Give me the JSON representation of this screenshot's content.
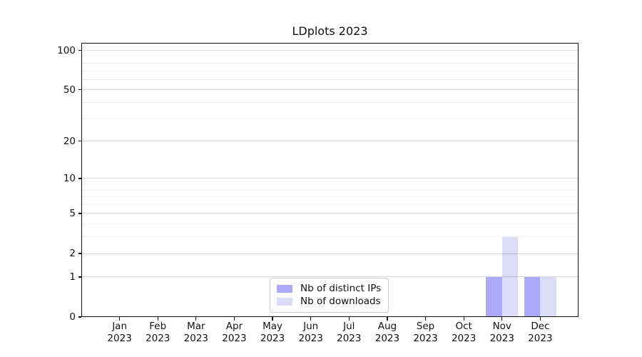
{
  "chart_data": {
    "type": "bar",
    "title": "LDplots 2023",
    "categories": [
      "Jan",
      "Feb",
      "Mar",
      "Apr",
      "May",
      "Jun",
      "Jul",
      "Aug",
      "Sep",
      "Oct",
      "Nov",
      "Dec"
    ],
    "category_year": "2023",
    "series": [
      {
        "name": "Nb of distinct IPs",
        "color": "#aaaaf8",
        "values": [
          0,
          0,
          0,
          0,
          0,
          0,
          0,
          0,
          0,
          0,
          1,
          1
        ]
      },
      {
        "name": "Nb of downloads",
        "color": "#dcdcf9",
        "values": [
          0,
          0,
          0,
          0,
          0,
          0,
          0,
          0,
          0,
          0,
          3,
          1
        ]
      }
    ],
    "xlabel": "",
    "ylabel": "",
    "yscale": "log1p",
    "ylim": [
      0,
      114
    ],
    "yticks": [
      0,
      1,
      2,
      5,
      10,
      20,
      50,
      100
    ],
    "yticks_minor": [
      3,
      4,
      6,
      7,
      8,
      9,
      30,
      40,
      60,
      70,
      80,
      90
    ],
    "grid": "horizontal",
    "legend_position": "lower center"
  },
  "colors": {
    "major_grid": "rgba(0,0,0,0.16)",
    "minor_grid": "rgba(0,0,0,0.065)",
    "spine": "#111111",
    "background": "#ffffff"
  }
}
